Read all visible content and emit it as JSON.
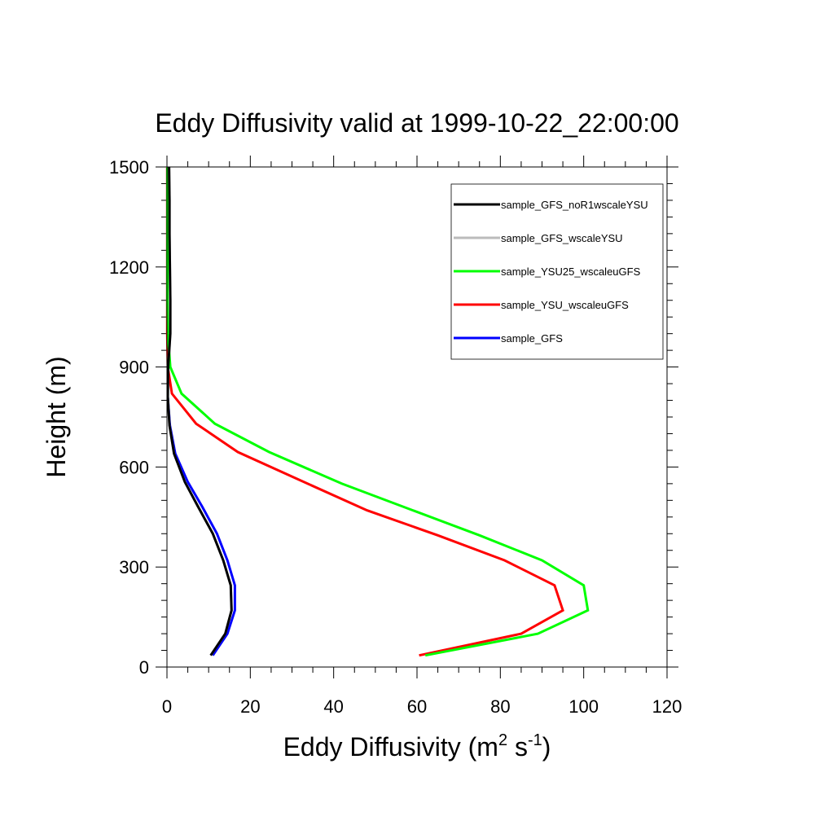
{
  "chart_data": {
    "type": "line",
    "title": "Eddy Diffusivity valid at 1999-10-22_22:00:00",
    "xlabel": {
      "main": "Eddy Diffusivity (m",
      "sup1": "2",
      "mid": " s",
      "sup2": "-1",
      "end": ")"
    },
    "ylabel": "Height (m)",
    "xlim": [
      0,
      120
    ],
    "ylim": [
      0,
      1500
    ],
    "xticks": [
      0,
      20,
      40,
      60,
      80,
      100,
      120
    ],
    "yticks": [
      0,
      300,
      600,
      900,
      1200,
      1500
    ],
    "legend_position": "top-right",
    "series": [
      {
        "name": "sample_GFS_noR1wscaleYSU",
        "color": "#000000",
        "points": [
          [
            10.5,
            35
          ],
          [
            14,
            100
          ],
          [
            15.5,
            170
          ],
          [
            15.3,
            245
          ],
          [
            13.5,
            320
          ],
          [
            11,
            400
          ],
          [
            7.5,
            480
          ],
          [
            4.3,
            555
          ],
          [
            1.7,
            640
          ],
          [
            0.6,
            725
          ],
          [
            0.2,
            810
          ],
          [
            0.3,
            900
          ],
          [
            0.8,
            1000
          ],
          [
            0.8,
            1100
          ],
          [
            0.7,
            1200
          ],
          [
            0.6,
            1300
          ],
          [
            0.6,
            1400
          ],
          [
            0.5,
            1500
          ]
        ]
      },
      {
        "name": "sample_GFS_wscaleYSU",
        "color": "#bbbbbb",
        "points": [
          [
            10.5,
            35
          ],
          [
            14,
            100
          ],
          [
            15.5,
            170
          ],
          [
            15.3,
            245
          ],
          [
            13.5,
            320
          ],
          [
            11,
            400
          ],
          [
            7.5,
            480
          ],
          [
            4.3,
            555
          ],
          [
            1.7,
            640
          ],
          [
            0.6,
            725
          ],
          [
            0.2,
            810
          ],
          [
            0.3,
            900
          ],
          [
            0.8,
            1000
          ],
          [
            0.8,
            1100
          ],
          [
            0.7,
            1200
          ],
          [
            0.6,
            1300
          ],
          [
            0.6,
            1400
          ],
          [
            0.5,
            1500
          ]
        ]
      },
      {
        "name": "sample_YSU25_wscaleuGFS",
        "color": "#00ff00",
        "points": [
          [
            62,
            35
          ],
          [
            89,
            100
          ],
          [
            101,
            170
          ],
          [
            100,
            245
          ],
          [
            90,
            320
          ],
          [
            75,
            395
          ],
          [
            59,
            470
          ],
          [
            42,
            550
          ],
          [
            24.5,
            645
          ],
          [
            11.5,
            730
          ],
          [
            3.5,
            820
          ],
          [
            0.8,
            900
          ],
          [
            0.2,
            1000
          ],
          [
            0.1,
            1100
          ],
          [
            0.1,
            1200
          ],
          [
            0.1,
            1300
          ],
          [
            0.1,
            1400
          ],
          [
            0.1,
            1500
          ]
        ]
      },
      {
        "name": "sample_YSU_wscaleuGFS",
        "color": "#ff0000",
        "points": [
          [
            60.5,
            35
          ],
          [
            85,
            100
          ],
          [
            95,
            170
          ],
          [
            93,
            245
          ],
          [
            81,
            320
          ],
          [
            65,
            395
          ],
          [
            48,
            470
          ],
          [
            32,
            560
          ],
          [
            17,
            645
          ],
          [
            7,
            730
          ],
          [
            1.2,
            820
          ],
          [
            0.2,
            900
          ],
          [
            0.05,
            1000
          ],
          [
            0.05,
            1100
          ],
          [
            0.05,
            1200
          ],
          [
            0.05,
            1300
          ],
          [
            0.05,
            1400
          ],
          [
            0.05,
            1500
          ]
        ]
      },
      {
        "name": "sample_GFS",
        "color": "#0000ff",
        "points": [
          [
            11,
            35
          ],
          [
            14.5,
            100
          ],
          [
            16.3,
            170
          ],
          [
            16.3,
            245
          ],
          [
            14.5,
            320
          ],
          [
            12,
            400
          ],
          [
            8.5,
            480
          ],
          [
            5,
            555
          ],
          [
            2,
            640
          ],
          [
            0.7,
            725
          ],
          [
            0.2,
            810
          ]
        ]
      }
    ],
    "draw_order": [
      "sample_GFS",
      "sample_YSU_wscaleuGFS",
      "sample_YSU25_wscaleuGFS",
      "sample_GFS_wscaleYSU",
      "sample_GFS_noR1wscaleYSU"
    ]
  }
}
